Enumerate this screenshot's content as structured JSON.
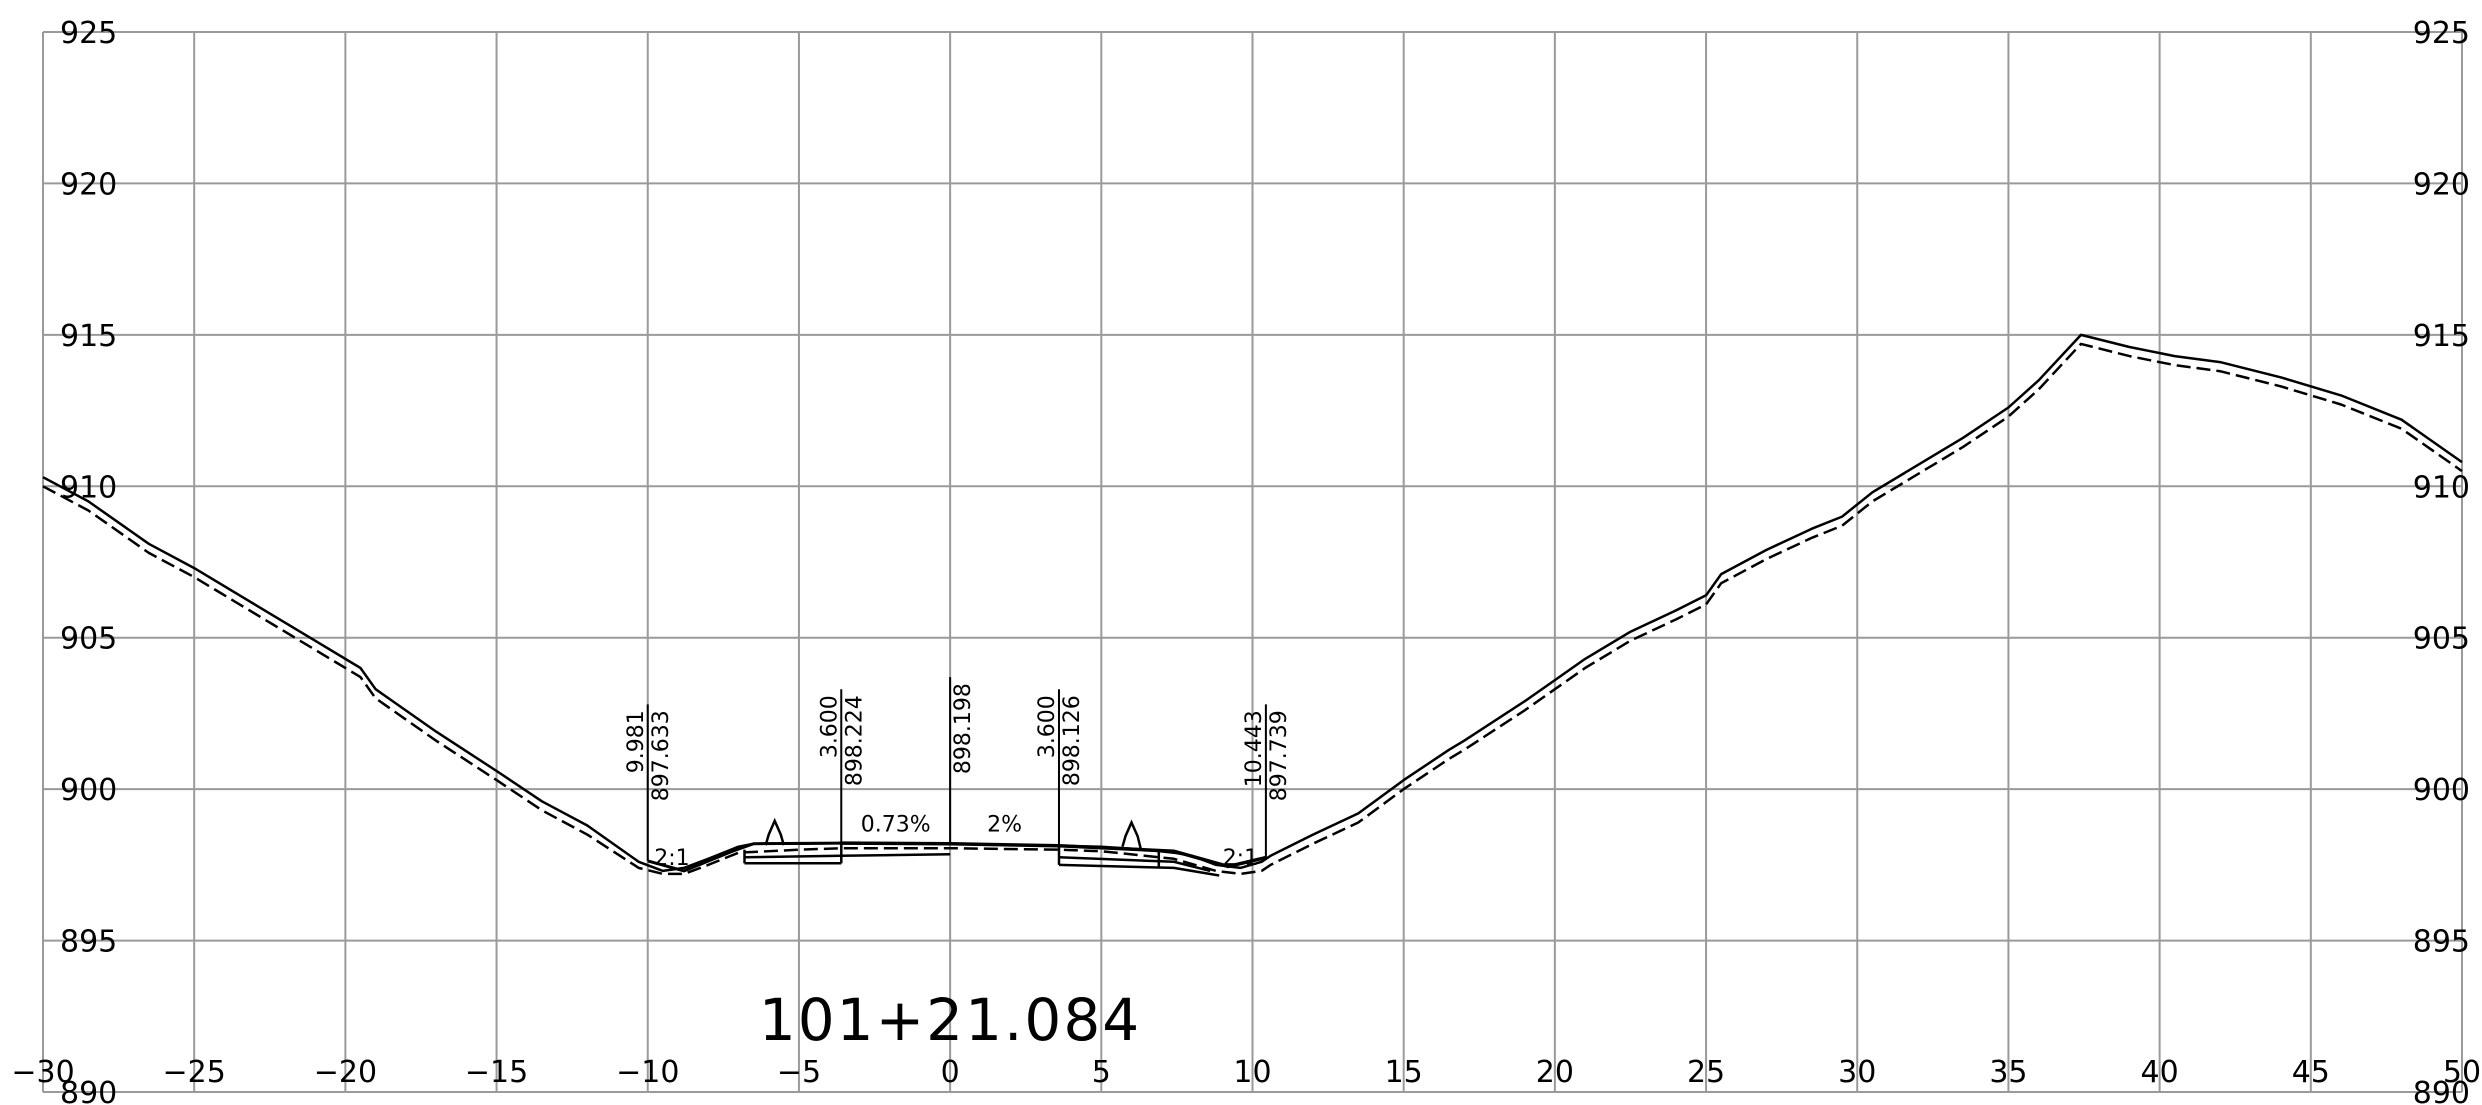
{
  "chart_data": {
    "type": "line",
    "title": "",
    "station_label": "101+21.084",
    "xlim": [
      -30,
      50
    ],
    "ylim": [
      890,
      925
    ],
    "grid": true,
    "colors": {
      "grid": "#9a9a9a",
      "line": "#000000"
    },
    "x_ticks": [
      {
        "v": -30,
        "label": "−30"
      },
      {
        "v": -25,
        "label": "−25"
      },
      {
        "v": -20,
        "label": "−20"
      },
      {
        "v": -15,
        "label": "−15"
      },
      {
        "v": -10,
        "label": "−10"
      },
      {
        "v": -5,
        "label": "−5"
      },
      {
        "v": 0,
        "label": "0"
      },
      {
        "v": 5,
        "label": "5"
      },
      {
        "v": 10,
        "label": "10"
      },
      {
        "v": 15,
        "label": "15"
      },
      {
        "v": 20,
        "label": "20"
      },
      {
        "v": 25,
        "label": "25"
      },
      {
        "v": 30,
        "label": "30"
      },
      {
        "v": 35,
        "label": "35"
      },
      {
        "v": 40,
        "label": "40"
      },
      {
        "v": 45,
        "label": "45"
      },
      {
        "v": 50,
        "label": "50"
      }
    ],
    "y_ticks": [
      {
        "v": 925,
        "label": "925"
      },
      {
        "v": 920,
        "label": "920"
      },
      {
        "v": 915,
        "label": "915"
      },
      {
        "v": 910,
        "label": "910"
      },
      {
        "v": 905,
        "label": "905"
      },
      {
        "v": 900,
        "label": "900"
      },
      {
        "v": 895,
        "label": "895"
      },
      {
        "v": 890,
        "label": "890"
      }
    ],
    "series": [
      {
        "style": "solid",
        "x": [
          -30,
          -28.5,
          -26.5,
          -25,
          -23,
          -21,
          -19.5,
          -19,
          -17,
          -15,
          -13.5,
          -12,
          -10.3,
          -9.5,
          -8.8,
          -8,
          -7,
          -6.5,
          -5.5,
          -5,
          -3.6,
          0,
          3.6,
          5,
          6.5,
          7.4,
          8,
          8.8,
          9.6,
          10.3,
          10.6,
          12,
          13.5,
          15,
          16.5,
          17,
          19,
          20,
          21,
          22.5,
          24,
          25,
          25.5,
          27,
          28.5,
          29.5,
          30.5,
          32,
          33.5,
          35,
          36,
          37.4,
          39,
          40.5,
          42,
          44,
          46,
          48,
          50
        ],
        "y": [
          910.3,
          909.5,
          908.1,
          907.3,
          906.1,
          904.9,
          904.0,
          903.3,
          901.9,
          900.6,
          899.6,
          898.8,
          897.6,
          897.3,
          897.4,
          897.7,
          898.1,
          898.2,
          898.2,
          898.2,
          898.22,
          898.2,
          898.13,
          898.1,
          898.0,
          897.9,
          897.8,
          897.5,
          897.4,
          897.6,
          897.8,
          898.5,
          899.2,
          900.3,
          901.3,
          901.6,
          902.9,
          903.6,
          904.3,
          905.2,
          905.9,
          906.4,
          907.1,
          907.9,
          908.6,
          909.0,
          909.8,
          910.7,
          911.6,
          912.6,
          913.5,
          915.0,
          914.6,
          914.3,
          914.1,
          913.6,
          913.0,
          912.2,
          910.8
        ]
      },
      {
        "style": "dashed",
        "x": [
          -30,
          -28.5,
          -26.5,
          -25,
          -23,
          -21,
          -19.5,
          -19,
          -17,
          -15,
          -13.5,
          -12,
          -10.3,
          -9.5,
          -8.8,
          -8,
          -7,
          -5,
          -3.6,
          0,
          3.6,
          5,
          7.4,
          8.8,
          9.6,
          10.3,
          10.6,
          12,
          13.5,
          15,
          16.5,
          17,
          19,
          20,
          21,
          22.5,
          24,
          25,
          25.5,
          27,
          28.5,
          29.5,
          30.5,
          32,
          33.5,
          35,
          36,
          37.4,
          39,
          40.5,
          42,
          44,
          46,
          48,
          50
        ],
        "y": [
          910.0,
          909.2,
          907.8,
          907.0,
          905.8,
          904.6,
          903.7,
          903.0,
          901.6,
          900.3,
          899.3,
          898.5,
          897.4,
          897.2,
          897.2,
          897.5,
          897.9,
          898.0,
          898.05,
          898.05,
          898.0,
          897.95,
          897.7,
          897.3,
          897.2,
          897.3,
          897.5,
          898.2,
          898.9,
          900.0,
          901.0,
          901.3,
          902.6,
          903.3,
          904.0,
          904.9,
          905.6,
          906.1,
          906.8,
          907.6,
          908.3,
          908.7,
          909.5,
          910.4,
          911.3,
          912.3,
          913.2,
          914.7,
          914.3,
          914.0,
          913.8,
          913.3,
          912.7,
          911.9,
          910.5
        ]
      }
    ],
    "offset_labels": [
      {
        "x": -10,
        "offset": "9.981",
        "elevation": "897.633",
        "top": 902.8
      },
      {
        "x": -3.6,
        "offset": "3.600",
        "elevation": "898.224",
        "top": 903.3
      },
      {
        "x": 0,
        "offset": "",
        "elevation": "898.198",
        "top": 903.7
      },
      {
        "x": 3.6,
        "offset": "3.600",
        "elevation": "898.126",
        "top": 903.3
      },
      {
        "x": 10.443,
        "offset": "10.443",
        "elevation": "897.739",
        "top": 902.8
      }
    ],
    "slope_labels": [
      {
        "x": -1.8,
        "y": 898.6,
        "text": "0.73%"
      },
      {
        "x": 1.8,
        "y": 898.6,
        "text": "2%"
      },
      {
        "x": -9.2,
        "y": 897.5,
        "text": "2:1"
      },
      {
        "x": 9.6,
        "y": 897.5,
        "text": "2:1"
      }
    ]
  }
}
